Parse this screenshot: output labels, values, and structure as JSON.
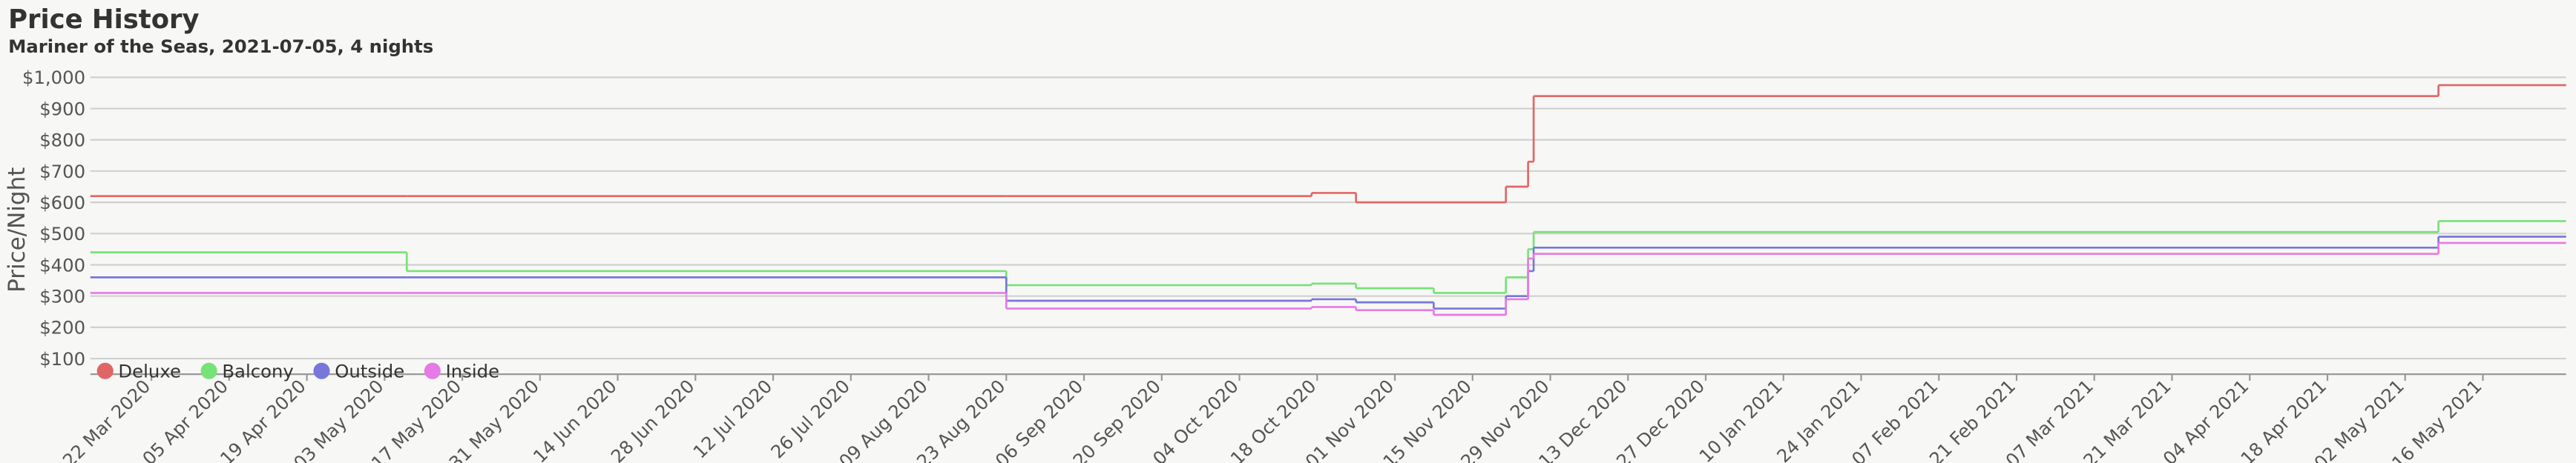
{
  "chart_data": {
    "type": "step",
    "title": "Price History",
    "subtitle": "Mariner of the Seas, 2021-07-05, 4 nights",
    "y_label": "Price/Night",
    "x": [
      "2020-03-11",
      "2020-05-07",
      "2020-08-23",
      "2020-10-17",
      "2020-10-25",
      "2020-11-08",
      "2020-11-21",
      "2020-11-25",
      "2020-11-26",
      "2021-05-08",
      "2021-05-31"
    ],
    "series": [
      {
        "name": "Deluxe",
        "color": "#e06666",
        "values": [
          620,
          620,
          620,
          630,
          600,
          600,
          650,
          730,
          940,
          975,
          975
        ]
      },
      {
        "name": "Balcony",
        "color": "#77e277",
        "values": [
          440,
          380,
          335,
          340,
          325,
          310,
          360,
          450,
          505,
          540,
          540
        ]
      },
      {
        "name": "Outside",
        "color": "#7777d9",
        "values": [
          360,
          360,
          285,
          290,
          280,
          260,
          300,
          380,
          455,
          490,
          490
        ]
      },
      {
        "name": "Inside",
        "color": "#e67ae6",
        "values": [
          310,
          310,
          260,
          265,
          255,
          240,
          290,
          420,
          435,
          470,
          470
        ]
      }
    ],
    "xlim": [
      "2020-03-11",
      "2021-05-31"
    ],
    "xticks": [
      {
        "value": "2020-03-22",
        "label": "22 Mar 2020"
      },
      {
        "value": "2020-04-05",
        "label": "05 Apr 2020"
      },
      {
        "value": "2020-04-19",
        "label": "19 Apr 2020"
      },
      {
        "value": "2020-05-03",
        "label": "03 May 2020"
      },
      {
        "value": "2020-05-17",
        "label": "17 May 2020"
      },
      {
        "value": "2020-05-31",
        "label": "31 May 2020"
      },
      {
        "value": "2020-06-14",
        "label": "14 Jun 2020"
      },
      {
        "value": "2020-06-28",
        "label": "28 Jun 2020"
      },
      {
        "value": "2020-07-12",
        "label": "12 Jul 2020"
      },
      {
        "value": "2020-07-26",
        "label": "26 Jul 2020"
      },
      {
        "value": "2020-08-09",
        "label": "09 Aug 2020"
      },
      {
        "value": "2020-08-23",
        "label": "23 Aug 2020"
      },
      {
        "value": "2020-09-06",
        "label": "06 Sep 2020"
      },
      {
        "value": "2020-09-20",
        "label": "20 Sep 2020"
      },
      {
        "value": "2020-10-04",
        "label": "04 Oct 2020"
      },
      {
        "value": "2020-10-18",
        "label": "18 Oct 2020"
      },
      {
        "value": "2020-11-01",
        "label": "01 Nov 2020"
      },
      {
        "value": "2020-11-15",
        "label": "15 Nov 2020"
      },
      {
        "value": "2020-11-29",
        "label": "29 Nov 2020"
      },
      {
        "value": "2020-12-13",
        "label": "13 Dec 2020"
      },
      {
        "value": "2020-12-27",
        "label": "27 Dec 2020"
      },
      {
        "value": "2021-01-10",
        "label": "10 Jan 2021"
      },
      {
        "value": "2021-01-24",
        "label": "24 Jan 2021"
      },
      {
        "value": "2021-02-07",
        "label": "07 Feb 2021"
      },
      {
        "value": "2021-02-21",
        "label": "21 Feb 2021"
      },
      {
        "value": "2021-03-07",
        "label": "07 Mar 2021"
      },
      {
        "value": "2021-03-21",
        "label": "21 Mar 2021"
      },
      {
        "value": "2021-04-04",
        "label": "04 Apr 2021"
      },
      {
        "value": "2021-04-18",
        "label": "18 Apr 2021"
      },
      {
        "value": "2021-05-02",
        "label": "02 May 2021"
      },
      {
        "value": "2021-05-16",
        "label": "16 May 2021"
      }
    ],
    "ylim": [
      50,
      1000
    ],
    "yticks": [
      {
        "value": 100,
        "label": "$100"
      },
      {
        "value": 200,
        "label": "$200"
      },
      {
        "value": 300,
        "label": "$300"
      },
      {
        "value": 400,
        "label": "$400"
      },
      {
        "value": 500,
        "label": "$500"
      },
      {
        "value": 600,
        "label": "$600"
      },
      {
        "value": 700,
        "label": "$700"
      },
      {
        "value": 800,
        "label": "$800"
      },
      {
        "value": 900,
        "label": "$900"
      },
      {
        "value": 1000,
        "label": "$1,000"
      }
    ],
    "grid": true,
    "legend": "bottom-left"
  }
}
